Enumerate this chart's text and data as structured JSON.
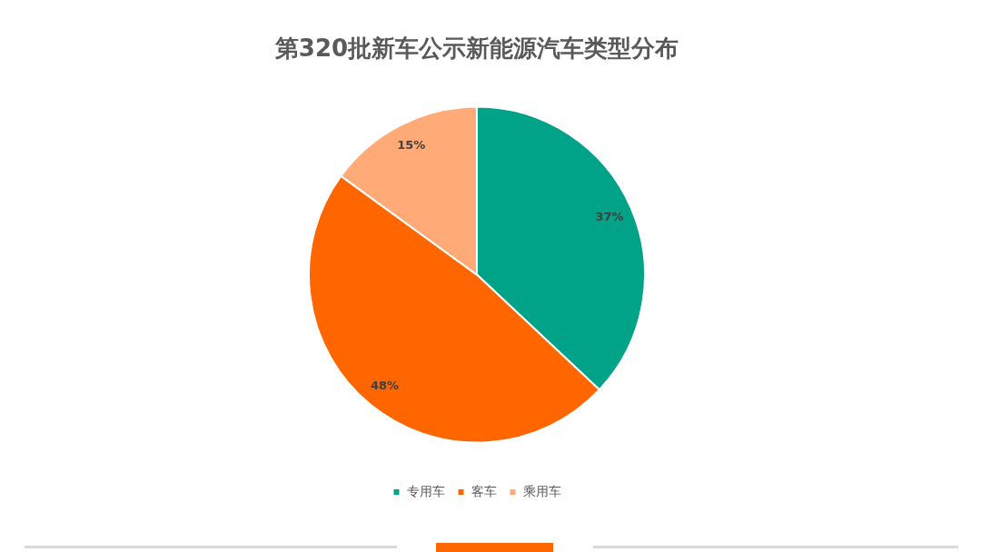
{
  "chart_data": {
    "type": "pie",
    "title": "第320批新车公示新能源汽车类型分布",
    "categories": [
      "专用车",
      "客车",
      "乘用车"
    ],
    "values": [
      37,
      48,
      15
    ],
    "colors": [
      "#00a388",
      "#ff6600",
      "#ffaa77"
    ],
    "value_labels": [
      "37%",
      "48%",
      "15%"
    ],
    "legend": "bottom"
  }
}
